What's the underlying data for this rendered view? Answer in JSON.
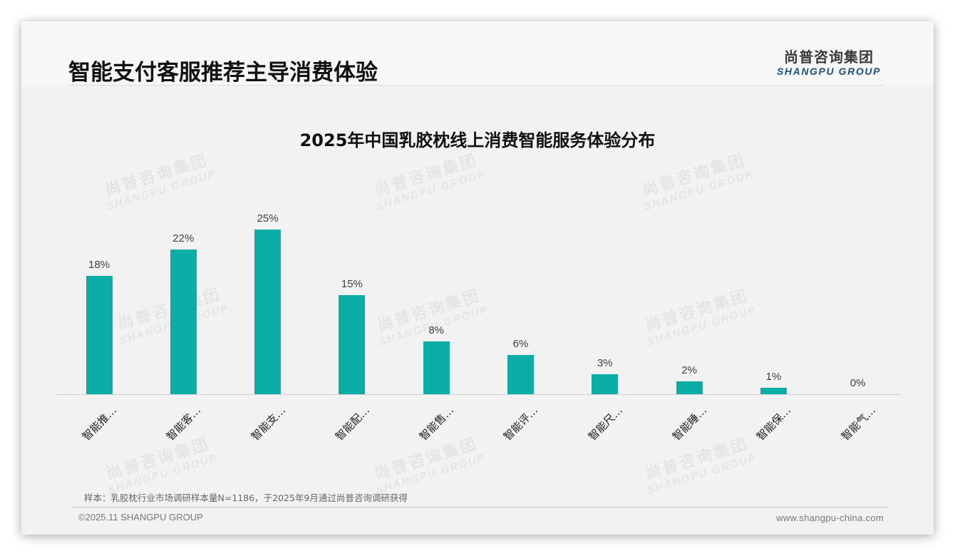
{
  "header": {
    "title": "智能支付客服推荐主导消费体验",
    "logo_cn": "尚普咨询集团",
    "logo_en": "SHANGPU GROUP"
  },
  "watermark": {
    "cn": "尚普咨询集团",
    "en": "SHANGPU GROUP"
  },
  "colors": {
    "bar": "#0AAEA6",
    "logo_en": "#1F4E79"
  },
  "chart_data": {
    "type": "bar",
    "title": "2025年中国乳胶枕线上消费智能服务体验分布",
    "xlabel": "",
    "ylabel": "",
    "categories": [
      "智能推…",
      "智能客…",
      "智能支…",
      "智能配…",
      "智能售…",
      "智能评…",
      "智能尺…",
      "智能睡…",
      "智能保…",
      "智能气…"
    ],
    "values": [
      18,
      22,
      25,
      15,
      8,
      6,
      3,
      2,
      1,
      0
    ],
    "value_labels": [
      "18%",
      "22%",
      "25%",
      "15%",
      "8%",
      "6%",
      "3%",
      "2%",
      "1%",
      "0%"
    ],
    "unit": "%",
    "ylim": [
      0,
      25
    ],
    "grid": false,
    "legend": "none",
    "x_tick_rotation": -45
  },
  "footer": {
    "note": "样本：乳胶枕行业市场调研样本量N=1186，于2025年9月通过尚普咨询调研获得",
    "copyright": "©2025.11 SHANGPU GROUP",
    "website": "www.shangpu-china.com"
  }
}
